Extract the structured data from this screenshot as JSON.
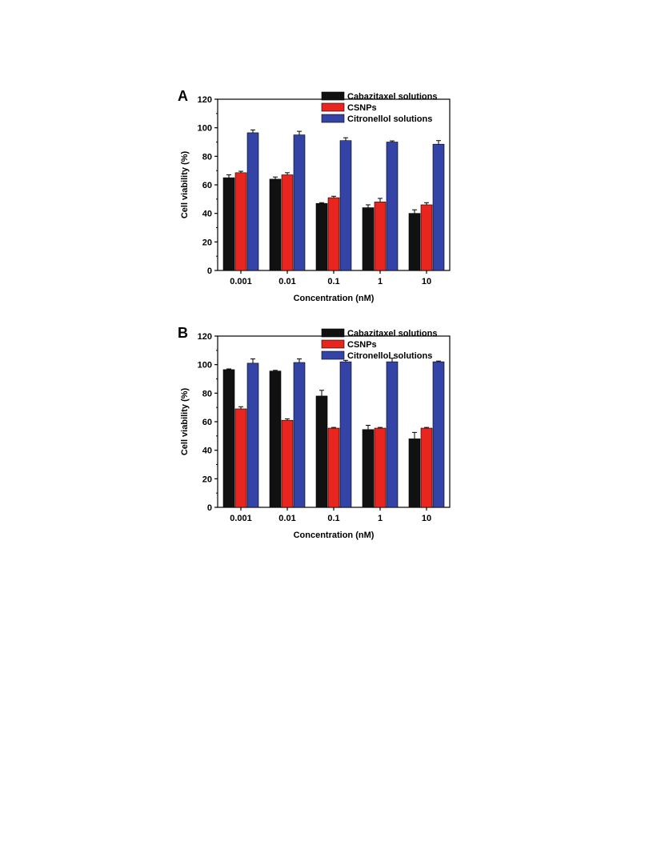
{
  "chart_data": [
    {
      "panel_label": "A",
      "type": "bar",
      "xlabel": "Concentration (nM)",
      "ylabel": "Cell viability (%)",
      "ylim": [
        0,
        120
      ],
      "yticks": [
        0,
        20,
        40,
        60,
        80,
        100,
        120
      ],
      "categories": [
        "0.001",
        "0.01",
        "0.1",
        "1",
        "10"
      ],
      "legend_position": "top-right",
      "series": [
        {
          "name": "Cabazitaxel solutions",
          "color": "#111111",
          "values": [
            65,
            64,
            47,
            44,
            40
          ],
          "errors": [
            2,
            1.5,
            0.5,
            2,
            2.5
          ]
        },
        {
          "name": "CSNPs",
          "color": "#e8261f",
          "values": [
            68.5,
            67,
            51,
            48,
            46
          ],
          "errors": [
            1,
            1.5,
            1,
            2.5,
            1.5
          ]
        },
        {
          "name": "Citronellol solutions",
          "color": "#3343a6",
          "values": [
            96.5,
            95,
            91,
            90,
            88.5
          ],
          "errors": [
            2,
            2.5,
            2,
            0.8,
            2.5
          ]
        }
      ]
    },
    {
      "panel_label": "B",
      "type": "bar",
      "xlabel": "Concentration (nM)",
      "ylabel": "Cell viability (%)",
      "ylim": [
        0,
        120
      ],
      "yticks": [
        0,
        20,
        40,
        60,
        80,
        100,
        120
      ],
      "categories": [
        "0.001",
        "0.01",
        "0.1",
        "1",
        "10"
      ],
      "legend_position": "top-right",
      "series": [
        {
          "name": "Cabazitaxel  solutions",
          "color": "#111111",
          "values": [
            96.5,
            95.5,
            78,
            54.5,
            48
          ],
          "errors": [
            0.5,
            0.5,
            4,
            3,
            4.5
          ]
        },
        {
          "name": "CSNPs",
          "color": "#e8261f",
          "values": [
            69,
            61,
            55.5,
            55.5,
            55.5
          ],
          "errors": [
            1.5,
            1,
            0.5,
            0.5,
            0.5
          ]
        },
        {
          "name": "Citronellol solutions",
          "color": "#3343a6",
          "values": [
            101,
            101.5,
            102,
            102,
            102
          ],
          "errors": [
            3,
            2.5,
            1,
            2.5,
            0.5
          ]
        }
      ]
    }
  ]
}
